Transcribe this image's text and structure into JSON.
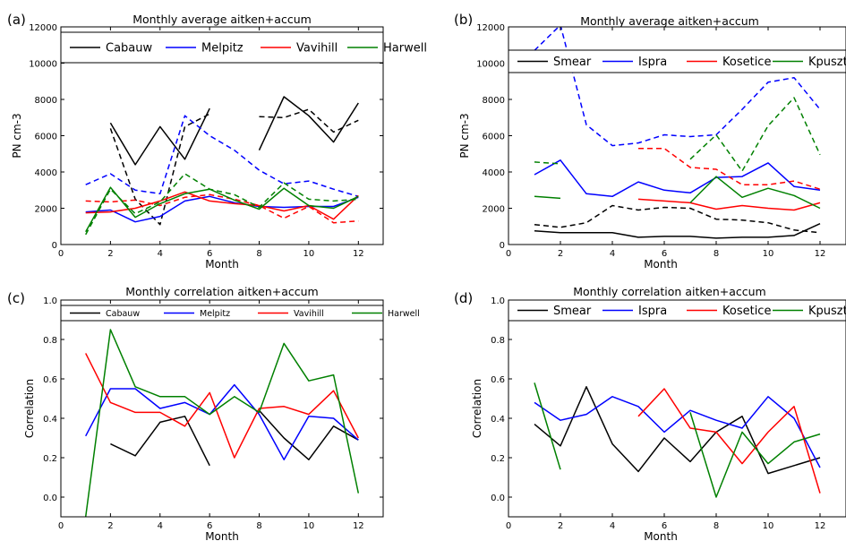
{
  "chart_data": [
    {
      "panel_label": "(a)",
      "type": "line",
      "title": "Monthly average aitken+accum",
      "xlabel": "Month",
      "ylabel": "PN cm-3",
      "xlim": [
        0,
        13
      ],
      "ylim": [
        0,
        12000
      ],
      "xticks": [
        0,
        2,
        4,
        6,
        8,
        10,
        12
      ],
      "xtick_labels": [
        "0",
        "2",
        "4",
        "6",
        "8",
        "10",
        "12"
      ],
      "yticks": [
        0,
        2000,
        4000,
        6000,
        8000,
        10000,
        12000
      ],
      "ytick_labels": [
        "0",
        "2000",
        "4000",
        "6000",
        "8000",
        "10000",
        "12000"
      ],
      "grid": false,
      "legend_placement": "top",
      "legend_font": 13,
      "x": [
        1,
        2,
        3,
        4,
        5,
        6,
        7,
        8,
        9,
        10,
        11,
        12
      ],
      "series": [
        {
          "name": "Cabauw",
          "color": "#000000",
          "dash": false,
          "values": [
            null,
            6700,
            4400,
            6500,
            4700,
            7500,
            null,
            5200,
            8150,
            7100,
            5650,
            7800
          ]
        },
        {
          "name": "",
          "color": "#000000",
          "dash": true,
          "values": [
            null,
            6400,
            2500,
            1100,
            6500,
            7200,
            null,
            7050,
            7000,
            7450,
            6200,
            6850
          ]
        },
        {
          "name": "Melpitz",
          "color": "#0000ff",
          "dash": false,
          "values": [
            1800,
            1900,
            1250,
            1550,
            2400,
            2650,
            2300,
            2100,
            2050,
            2100,
            2100,
            2600
          ]
        },
        {
          "name": "",
          "color": "#0000ff",
          "dash": true,
          "values": [
            3300,
            3900,
            3000,
            2800,
            7100,
            6000,
            5200,
            4100,
            3350,
            3500,
            3050,
            2650
          ]
        },
        {
          "name": "Vavihill",
          "color": "#ff0000",
          "dash": false,
          "values": [
            1750,
            1800,
            2000,
            2400,
            2900,
            2400,
            2250,
            2150,
            1850,
            2150,
            1400,
            2700
          ]
        },
        {
          "name": "",
          "color": "#ff0000",
          "dash": true,
          "values": [
            2400,
            2350,
            2450,
            2150,
            2600,
            2750,
            2500,
            2150,
            1450,
            2100,
            1200,
            1300
          ]
        },
        {
          "name": "Harwell",
          "color": "#008000",
          "dash": false,
          "values": [
            700,
            3150,
            1500,
            2250,
            2800,
            3050,
            2450,
            1950,
            3100,
            2150,
            2000,
            2650
          ]
        },
        {
          "name": "",
          "color": "#008000",
          "dash": true,
          "values": [
            550,
            3050,
            1700,
            2350,
            3900,
            3050,
            2750,
            2050,
            3400,
            2500,
            2400,
            2500
          ]
        }
      ]
    },
    {
      "panel_label": "(b)",
      "type": "line",
      "title": "Monthly average aitken+accum",
      "xlabel": "Month",
      "ylabel": "PN cm-3",
      "xlim": [
        0,
        13
      ],
      "ylim": [
        0,
        12000
      ],
      "xticks": [
        0,
        2,
        4,
        6,
        8,
        10,
        12
      ],
      "xtick_labels": [
        "0",
        "2",
        "4",
        "6",
        "8",
        "10",
        "12"
      ],
      "yticks": [
        0,
        2000,
        4000,
        6000,
        8000,
        10000,
        12000
      ],
      "ytick_labels": [
        "0",
        "2000",
        "4000",
        "6000",
        "8000",
        "10000",
        "12000"
      ],
      "grid": false,
      "legend_placement": "top",
      "legend_font": 13,
      "x": [
        1,
        2,
        3,
        4,
        5,
        6,
        7,
        8,
        9,
        10,
        11,
        12
      ],
      "series": [
        {
          "name": "Smear",
          "color": "#000000",
          "dash": false,
          "values": [
            750,
            650,
            650,
            650,
            400,
            450,
            450,
            350,
            400,
            400,
            500,
            1150
          ]
        },
        {
          "name": "",
          "color": "#000000",
          "dash": true,
          "values": [
            1100,
            950,
            1200,
            2150,
            1900,
            2050,
            2000,
            1400,
            1350,
            1200,
            800,
            650
          ]
        },
        {
          "name": "Ispra",
          "color": "#0000ff",
          "dash": false,
          "values": [
            3850,
            4650,
            2800,
            2650,
            3450,
            3000,
            2850,
            3700,
            3750,
            4500,
            3200,
            3000
          ]
        },
        {
          "name": "",
          "color": "#0000ff",
          "dash": true,
          "values": [
            10700,
            12100,
            6600,
            5450,
            5600,
            6050,
            5950,
            6050,
            7450,
            8950,
            9200,
            7450
          ]
        },
        {
          "name": "Kosetice",
          "color": "#ff0000",
          "dash": false,
          "values": [
            null,
            null,
            null,
            null,
            2500,
            2400,
            2300,
            1950,
            2150,
            2000,
            1900,
            2300
          ]
        },
        {
          "name": "",
          "color": "#ff0000",
          "dash": true,
          "values": [
            null,
            null,
            null,
            null,
            5300,
            5300,
            4250,
            4150,
            3300,
            3300,
            3500,
            3050
          ]
        },
        {
          "name": "Kpuszta",
          "color": "#008000",
          "dash": false,
          "values": [
            2650,
            2550,
            null,
            null,
            null,
            null,
            2300,
            3750,
            2600,
            3100,
            2700,
            2000
          ]
        },
        {
          "name": "",
          "color": "#008000",
          "dash": true,
          "values": [
            4550,
            4450,
            null,
            null,
            null,
            null,
            4700,
            6050,
            4050,
            6550,
            8100,
            4950
          ]
        }
      ]
    },
    {
      "panel_label": "(c)",
      "type": "line",
      "title": "Monthly correlation aitken+accum",
      "xlabel": "Month",
      "ylabel": "Correlation",
      "xlim": [
        0,
        13
      ],
      "ylim": [
        -0.1,
        1.0
      ],
      "xticks": [
        0,
        2,
        4,
        6,
        8,
        10,
        12
      ],
      "xtick_labels": [
        "0",
        "2",
        "4",
        "6",
        "8",
        "10",
        "12"
      ],
      "yticks": [
        0.0,
        0.2,
        0.4,
        0.6,
        0.8,
        1.0
      ],
      "ytick_labels": [
        "0.0",
        "0.2",
        "0.4",
        "0.6",
        "0.8",
        "1.0"
      ],
      "grid": false,
      "legend_placement": "top",
      "legend_font": 9.5,
      "x": [
        1,
        2,
        3,
        4,
        5,
        6,
        7,
        8,
        9,
        10,
        11,
        12
      ],
      "series": [
        {
          "name": "Cabauw",
          "color": "#000000",
          "dash": false,
          "values": [
            null,
            0.27,
            0.21,
            0.38,
            0.41,
            0.16,
            null,
            0.44,
            0.3,
            0.19,
            0.36,
            0.29
          ]
        },
        {
          "name": "Melpitz",
          "color": "#0000ff",
          "dash": false,
          "values": [
            0.31,
            0.55,
            0.55,
            0.45,
            0.48,
            0.42,
            0.57,
            0.42,
            0.19,
            0.41,
            0.4,
            0.29
          ]
        },
        {
          "name": "Vavihill",
          "color": "#ff0000",
          "dash": false,
          "values": [
            0.73,
            0.48,
            0.43,
            0.43,
            0.36,
            0.53,
            0.2,
            0.45,
            0.46,
            0.42,
            0.54,
            0.3
          ]
        },
        {
          "name": "Harwell",
          "color": "#008000",
          "dash": false,
          "values": [
            -0.1,
            0.85,
            0.56,
            0.51,
            0.51,
            0.42,
            0.51,
            0.43,
            0.78,
            0.59,
            0.62,
            0.02
          ]
        }
      ]
    },
    {
      "panel_label": "(d)",
      "type": "line",
      "title": "Monthly correlation aitken+accum",
      "xlabel": "Month",
      "ylabel": "Correlation",
      "xlim": [
        0,
        13
      ],
      "ylim": [
        -0.1,
        1.0
      ],
      "xticks": [
        0,
        2,
        4,
        6,
        8,
        10,
        12
      ],
      "xtick_labels": [
        "0",
        "2",
        "4",
        "6",
        "8",
        "10",
        "12"
      ],
      "yticks": [
        0.0,
        0.2,
        0.4,
        0.6,
        0.8,
        1.0
      ],
      "ytick_labels": [
        "0.0",
        "0.2",
        "0.4",
        "0.6",
        "0.8",
        "1.0"
      ],
      "grid": false,
      "legend_placement": "top",
      "legend_font": 13,
      "x": [
        1,
        2,
        3,
        4,
        5,
        6,
        7,
        8,
        9,
        10,
        11,
        12
      ],
      "series": [
        {
          "name": "Smear",
          "color": "#000000",
          "dash": false,
          "values": [
            0.37,
            0.26,
            0.56,
            0.27,
            0.13,
            0.3,
            0.18,
            0.33,
            0.41,
            0.12,
            0.16,
            0.2
          ]
        },
        {
          "name": "Ispra",
          "color": "#0000ff",
          "dash": false,
          "values": [
            0.48,
            0.39,
            0.42,
            0.51,
            0.46,
            0.33,
            0.44,
            0.39,
            0.35,
            0.51,
            0.4,
            0.15
          ]
        },
        {
          "name": "Kosetice",
          "color": "#ff0000",
          "dash": false,
          "values": [
            null,
            null,
            null,
            null,
            0.41,
            0.55,
            0.35,
            0.33,
            0.17,
            0.33,
            0.46,
            0.02
          ]
        },
        {
          "name": "Kpuszta",
          "color": "#008000",
          "dash": false,
          "values": [
            0.58,
            0.14,
            null,
            null,
            null,
            null,
            0.43,
            0.0,
            0.33,
            0.17,
            0.28,
            0.32
          ]
        }
      ]
    }
  ]
}
